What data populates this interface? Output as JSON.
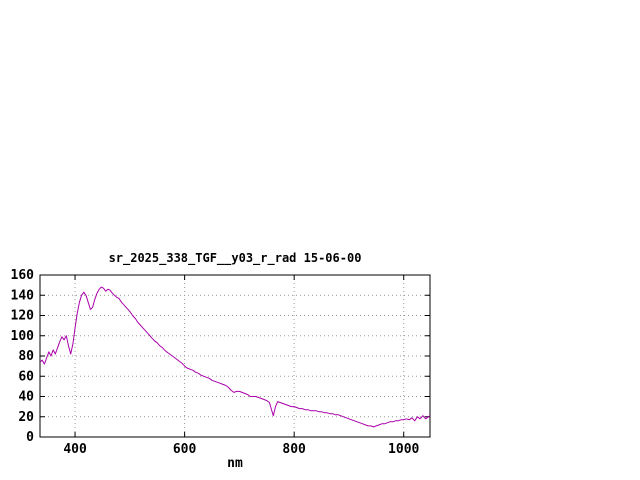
{
  "window": {
    "background": "#ffffff"
  },
  "chart_data": {
    "type": "line",
    "title": "sr_2025_338_TGF__y03_r_rad 15-06-00",
    "xlabel": "nm",
    "ylabel": "",
    "xlim": [
      336,
      1048
    ],
    "ylim": [
      0,
      160
    ],
    "x_ticks": [
      400,
      600,
      800,
      1000
    ],
    "y_ticks": [
      0,
      20,
      40,
      60,
      80,
      100,
      120,
      140,
      160
    ],
    "grid": true,
    "grid_color": "#999999",
    "border_color": "#000000",
    "line_color": "#aa00aa",
    "legend": "none",
    "series": [
      {
        "points": [
          [
            336,
            74
          ],
          [
            340,
            76
          ],
          [
            344,
            72
          ],
          [
            348,
            78
          ],
          [
            352,
            84
          ],
          [
            356,
            80
          ],
          [
            360,
            86
          ],
          [
            364,
            82
          ],
          [
            368,
            88
          ],
          [
            372,
            94
          ],
          [
            376,
            99
          ],
          [
            380,
            96
          ],
          [
            384,
            100
          ],
          [
            388,
            90
          ],
          [
            392,
            82
          ],
          [
            396,
            92
          ],
          [
            400,
            108
          ],
          [
            404,
            122
          ],
          [
            408,
            133
          ],
          [
            412,
            140
          ],
          [
            416,
            143
          ],
          [
            420,
            140
          ],
          [
            424,
            133
          ],
          [
            428,
            126
          ],
          [
            432,
            128
          ],
          [
            436,
            136
          ],
          [
            440,
            142
          ],
          [
            444,
            146
          ],
          [
            448,
            148
          ],
          [
            452,
            147
          ],
          [
            456,
            144
          ],
          [
            460,
            146
          ],
          [
            464,
            145
          ],
          [
            468,
            142
          ],
          [
            472,
            140
          ],
          [
            476,
            138
          ],
          [
            480,
            137
          ],
          [
            485,
            133
          ],
          [
            490,
            130
          ],
          [
            495,
            127
          ],
          [
            500,
            124
          ],
          [
            505,
            120
          ],
          [
            510,
            117
          ],
          [
            515,
            113
          ],
          [
            520,
            110
          ],
          [
            525,
            107
          ],
          [
            530,
            104
          ],
          [
            535,
            101
          ],
          [
            540,
            98
          ],
          [
            545,
            95
          ],
          [
            550,
            93
          ],
          [
            555,
            90
          ],
          [
            560,
            88
          ],
          [
            565,
            85
          ],
          [
            570,
            83
          ],
          [
            575,
            81
          ],
          [
            580,
            79
          ],
          [
            585,
            77
          ],
          [
            590,
            75
          ],
          [
            595,
            73
          ],
          [
            600,
            70
          ],
          [
            605,
            68
          ],
          [
            610,
            67
          ],
          [
            615,
            66
          ],
          [
            620,
            64
          ],
          [
            625,
            63
          ],
          [
            630,
            61
          ],
          [
            635,
            60
          ],
          [
            640,
            59
          ],
          [
            645,
            58
          ],
          [
            650,
            56
          ],
          [
            655,
            55
          ],
          [
            660,
            54
          ],
          [
            665,
            53
          ],
          [
            670,
            52
          ],
          [
            675,
            51
          ],
          [
            680,
            49
          ],
          [
            685,
            46
          ],
          [
            690,
            44
          ],
          [
            695,
            45
          ],
          [
            700,
            45
          ],
          [
            705,
            44
          ],
          [
            710,
            43
          ],
          [
            715,
            42
          ],
          [
            720,
            40
          ],
          [
            725,
            40
          ],
          [
            730,
            40
          ],
          [
            735,
            39
          ],
          [
            740,
            38
          ],
          [
            745,
            37
          ],
          [
            750,
            36
          ],
          [
            755,
            34
          ],
          [
            758,
            28
          ],
          [
            762,
            21
          ],
          [
            766,
            30
          ],
          [
            770,
            35
          ],
          [
            775,
            34
          ],
          [
            780,
            33
          ],
          [
            785,
            32
          ],
          [
            790,
            31
          ],
          [
            795,
            30
          ],
          [
            800,
            30
          ],
          [
            805,
            29
          ],
          [
            810,
            28
          ],
          [
            815,
            28
          ],
          [
            820,
            27
          ],
          [
            825,
            27
          ],
          [
            830,
            26
          ],
          [
            835,
            26
          ],
          [
            840,
            26
          ],
          [
            845,
            25
          ],
          [
            850,
            25
          ],
          [
            855,
            24
          ],
          [
            860,
            24
          ],
          [
            865,
            23
          ],
          [
            870,
            23
          ],
          [
            875,
            22
          ],
          [
            880,
            22
          ],
          [
            885,
            21
          ],
          [
            890,
            20
          ],
          [
            895,
            19
          ],
          [
            900,
            18
          ],
          [
            905,
            17
          ],
          [
            910,
            16
          ],
          [
            915,
            15
          ],
          [
            920,
            14
          ],
          [
            925,
            13
          ],
          [
            930,
            12
          ],
          [
            935,
            11
          ],
          [
            940,
            11
          ],
          [
            945,
            10
          ],
          [
            950,
            11
          ],
          [
            955,
            12
          ],
          [
            960,
            13
          ],
          [
            965,
            13
          ],
          [
            970,
            14
          ],
          [
            975,
            15
          ],
          [
            980,
            15
          ],
          [
            985,
            16
          ],
          [
            990,
            16
          ],
          [
            995,
            17
          ],
          [
            1000,
            17
          ],
          [
            1005,
            18
          ],
          [
            1010,
            17
          ],
          [
            1015,
            19
          ],
          [
            1020,
            16
          ],
          [
            1025,
            20
          ],
          [
            1030,
            18
          ],
          [
            1035,
            21
          ],
          [
            1040,
            18
          ],
          [
            1045,
            20
          ],
          [
            1048,
            21
          ]
        ]
      }
    ]
  }
}
